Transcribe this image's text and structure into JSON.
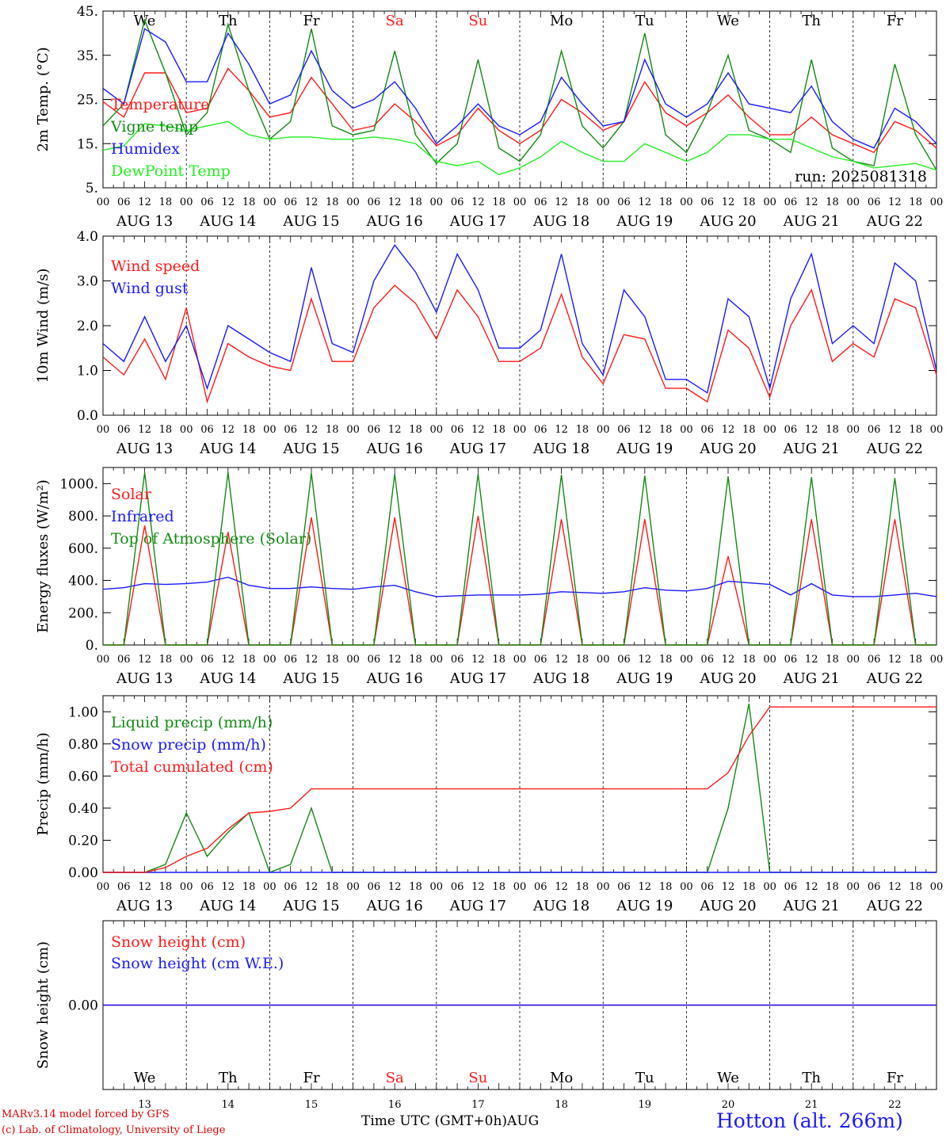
{
  "colors": {
    "red": "#ff1a1a",
    "blue": "#1a1aff",
    "green": "#138a13",
    "lime": "#22ee22",
    "weekend": "#ff1a1a",
    "axis": "#000000"
  },
  "days": [
    {
      "abbr": "We",
      "date": "AUG 13",
      "num": "13",
      "weekend": false
    },
    {
      "abbr": "Th",
      "date": "AUG 14",
      "num": "14",
      "weekend": false
    },
    {
      "abbr": "Fr",
      "date": "AUG 15",
      "num": "15",
      "weekend": false
    },
    {
      "abbr": "Sa",
      "date": "AUG 16",
      "num": "16",
      "weekend": true
    },
    {
      "abbr": "Su",
      "date": "AUG 17",
      "num": "17",
      "weekend": true
    },
    {
      "abbr": "Mo",
      "date": "AUG 18",
      "num": "18",
      "weekend": false
    },
    {
      "abbr": "Tu",
      "date": "AUG 19",
      "num": "19",
      "weekend": false
    },
    {
      "abbr": "We",
      "date": "AUG 20",
      "num": "20",
      "weekend": false
    },
    {
      "abbr": "Th",
      "date": "AUG 21",
      "num": "21",
      "weekend": false
    },
    {
      "abbr": "Fr",
      "date": "AUG 22",
      "num": "22",
      "weekend": false
    }
  ],
  "hour_ticks": [
    "00",
    "06",
    "12",
    "18"
  ],
  "hour_ticks_end": "00",
  "footer": {
    "model": "MARv3.14 model forced by GFS",
    "lab": "(c) Lab. of Climatology, University of Liege",
    "time_axis": "Time UTC (GMT+0h)AUG",
    "station": "Hotton (alt. 266m)"
  },
  "chart_data": [
    {
      "type": "line",
      "ylabel": "2m Temp. (°C)",
      "ylim": [
        5,
        45
      ],
      "yticks": [
        "45.",
        "35.",
        "25.",
        "15.",
        "5."
      ],
      "ytick_values": [
        45,
        35,
        25,
        15,
        5
      ],
      "annotation": "run: 2025081318",
      "show_days": true,
      "x": [
        0,
        6,
        12,
        18,
        24,
        30,
        36,
        42,
        48,
        54,
        60,
        66,
        72,
        78,
        84,
        90,
        96,
        102,
        108,
        114,
        120,
        126,
        132,
        138,
        144,
        150,
        156,
        162,
        168,
        174,
        180,
        186,
        192,
        198,
        204,
        210,
        216,
        222,
        228,
        234,
        240
      ],
      "series": [
        {
          "name": "Temperature",
          "color": "red",
          "values": [
            24.5,
            21,
            31,
            31,
            22,
            23,
            32,
            27,
            21,
            22,
            30,
            24,
            18,
            19,
            24,
            20,
            14.5,
            17,
            23,
            18,
            15,
            18,
            25,
            22,
            18,
            20,
            29,
            22,
            19,
            22,
            26,
            21,
            17,
            17,
            21,
            17,
            15,
            13,
            20,
            18,
            14
          ]
        },
        {
          "name": "Vigne temp",
          "color": "green",
          "values": [
            19,
            24,
            43,
            31,
            17,
            22,
            42,
            27,
            16,
            20,
            41,
            19,
            17,
            18,
            36,
            17,
            10.5,
            15,
            34,
            14,
            11,
            17,
            36,
            19,
            14,
            20,
            40,
            17,
            13,
            22,
            35,
            18,
            16,
            13,
            34,
            14,
            11,
            10,
            33,
            17,
            9
          ]
        },
        {
          "name": "Humidex",
          "color": "blue",
          "values": [
            27.5,
            24,
            41,
            38,
            29,
            29,
            40,
            33,
            24,
            26,
            36,
            27,
            23,
            25,
            29,
            23,
            15,
            19,
            24,
            19,
            17,
            20,
            30,
            24,
            19,
            20,
            34,
            24,
            21,
            24,
            31,
            24,
            23,
            22,
            28,
            20,
            16,
            14,
            23,
            20,
            15
          ]
        },
        {
          "name": "DewPoint Temp",
          "color": "lime",
          "values": [
            13.5,
            14.5,
            19.5,
            19,
            18,
            19,
            20,
            17,
            16,
            16.5,
            16.5,
            16,
            16,
            16.5,
            16,
            15,
            11,
            10,
            11,
            8,
            9.5,
            12,
            15.5,
            13,
            11,
            11,
            15,
            13,
            11,
            13,
            17,
            17,
            16,
            16,
            14,
            12,
            11,
            9.5,
            10,
            10.5,
            9
          ]
        }
      ]
    },
    {
      "type": "line",
      "ylabel": "10m Wind (m/s)",
      "ylim": [
        0,
        4
      ],
      "yticks": [
        "4.0",
        "3.0",
        "2.0",
        "1.0",
        "0.0"
      ],
      "ytick_values": [
        4,
        3,
        2,
        1,
        0
      ],
      "show_days": false,
      "x": [
        0,
        6,
        12,
        18,
        24,
        30,
        36,
        42,
        48,
        54,
        60,
        66,
        72,
        78,
        84,
        90,
        96,
        102,
        108,
        114,
        120,
        126,
        132,
        138,
        144,
        150,
        156,
        162,
        168,
        174,
        180,
        186,
        192,
        198,
        204,
        210,
        216,
        222,
        228,
        234,
        240
      ],
      "series": [
        {
          "name": "Wind speed",
          "color": "red",
          "values": [
            1.3,
            0.9,
            1.7,
            0.8,
            2.4,
            0.3,
            1.6,
            1.3,
            1.1,
            1.0,
            2.6,
            1.2,
            1.2,
            2.4,
            2.9,
            2.5,
            1.7,
            2.8,
            2.2,
            1.2,
            1.2,
            1.5,
            2.7,
            1.3,
            0.7,
            1.8,
            1.7,
            0.6,
            0.6,
            0.3,
            1.9,
            1.5,
            0.4,
            2.0,
            2.8,
            1.2,
            1.6,
            1.3,
            2.6,
            2.4,
            0.9
          ]
        },
        {
          "name": "Wind gust",
          "color": "blue",
          "values": [
            1.6,
            1.2,
            2.2,
            1.2,
            2.0,
            0.6,
            2.0,
            1.7,
            1.4,
            1.2,
            3.3,
            1.6,
            1.4,
            3.0,
            3.8,
            3.2,
            2.3,
            3.6,
            2.8,
            1.5,
            1.5,
            1.9,
            3.6,
            1.6,
            0.9,
            2.8,
            2.2,
            0.8,
            0.8,
            0.5,
            2.6,
            2.2,
            0.6,
            2.6,
            3.6,
            1.6,
            2.0,
            1.6,
            3.4,
            3.0,
            1.0
          ]
        }
      ]
    },
    {
      "type": "line",
      "ylabel": "Energy fluxes (W/m²)",
      "ylim": [
        0,
        1100
      ],
      "yticks": [
        "1000.",
        "800.",
        "600.",
        "400.",
        "200.",
        "0."
      ],
      "ytick_values": [
        1000,
        800,
        600,
        400,
        200,
        0
      ],
      "show_days": false,
      "x": [
        0,
        6,
        12,
        18,
        24,
        30,
        36,
        42,
        48,
        54,
        60,
        66,
        72,
        78,
        84,
        90,
        96,
        102,
        108,
        114,
        120,
        126,
        132,
        138,
        144,
        150,
        156,
        162,
        168,
        174,
        180,
        186,
        192,
        198,
        204,
        210,
        216,
        222,
        228,
        234,
        240
      ],
      "series": [
        {
          "name": "Solar",
          "color": "red",
          "values": [
            0,
            0,
            740,
            0,
            0,
            0,
            700,
            0,
            0,
            0,
            790,
            0,
            0,
            0,
            790,
            0,
            0,
            0,
            800,
            0,
            0,
            0,
            780,
            0,
            0,
            0,
            780,
            0,
            0,
            0,
            550,
            0,
            0,
            0,
            780,
            0,
            0,
            0,
            780,
            0,
            0
          ]
        },
        {
          "name": "Infrared",
          "color": "blue",
          "values": [
            345,
            355,
            380,
            375,
            380,
            390,
            420,
            370,
            350,
            350,
            360,
            350,
            345,
            360,
            370,
            330,
            300,
            305,
            310,
            310,
            310,
            315,
            330,
            325,
            320,
            330,
            355,
            340,
            335,
            350,
            395,
            385,
            375,
            310,
            380,
            310,
            300,
            300,
            310,
            320,
            300
          ]
        },
        {
          "name": "Top of Atmosphere (Solar)",
          "color": "green",
          "values": [
            0,
            0,
            1070,
            0,
            0,
            0,
            1070,
            0,
            0,
            0,
            1065,
            0,
            0,
            0,
            1060,
            0,
            0,
            0,
            1060,
            0,
            0,
            0,
            1055,
            0,
            0,
            0,
            1050,
            0,
            0,
            0,
            1045,
            0,
            0,
            0,
            1040,
            0,
            0,
            0,
            1035,
            0,
            0
          ]
        }
      ]
    },
    {
      "type": "line",
      "ylabel": "Precip (mm/h)",
      "ylim": [
        0,
        1.1
      ],
      "yticks": [
        "1.00",
        "0.80",
        "0.60",
        "0.40",
        "0.20",
        "0.00"
      ],
      "ytick_values": [
        1,
        0.8,
        0.6,
        0.4,
        0.2,
        0
      ],
      "show_days": false,
      "x": [
        0,
        6,
        12,
        18,
        24,
        30,
        36,
        42,
        48,
        54,
        60,
        66,
        72,
        78,
        84,
        90,
        96,
        102,
        108,
        114,
        120,
        126,
        132,
        138,
        144,
        150,
        156,
        162,
        168,
        174,
        180,
        186,
        192,
        198,
        204,
        210,
        216,
        222,
        228,
        234,
        240
      ],
      "series": [
        {
          "name": "Liquid precip (mm/h)",
          "color": "green",
          "values": [
            0,
            0,
            0,
            0.05,
            0.37,
            0.1,
            0.25,
            0.37,
            0,
            0.05,
            0.4,
            0,
            0,
            0,
            0,
            0,
            0,
            0,
            0,
            0,
            0,
            0,
            0,
            0,
            0,
            0,
            0,
            0,
            0,
            0,
            0.4,
            1.05,
            0,
            0,
            0,
            0,
            0,
            0,
            0,
            0,
            0
          ]
        },
        {
          "name": "Snow precip (mm/h)",
          "color": "blue",
          "values": [
            0,
            0,
            0,
            0,
            0,
            0,
            0,
            0,
            0,
            0,
            0,
            0,
            0,
            0,
            0,
            0,
            0,
            0,
            0,
            0,
            0,
            0,
            0,
            0,
            0,
            0,
            0,
            0,
            0,
            0,
            0,
            0,
            0,
            0,
            0,
            0,
            0,
            0,
            0,
            0,
            0
          ]
        },
        {
          "name": "Total cumulated (cm)",
          "color": "red",
          "values": [
            0,
            0,
            0,
            0.03,
            0.1,
            0.15,
            0.27,
            0.37,
            0.38,
            0.4,
            0.52,
            0.52,
            0.52,
            0.52,
            0.52,
            0.52,
            0.52,
            0.52,
            0.52,
            0.52,
            0.52,
            0.52,
            0.52,
            0.52,
            0.52,
            0.52,
            0.52,
            0.52,
            0.52,
            0.52,
            0.62,
            0.85,
            1.03,
            1.03,
            1.03,
            1.03,
            1.03,
            1.03,
            1.03,
            1.03,
            1.03
          ]
        }
      ]
    },
    {
      "type": "line",
      "ylabel": "Snow height (cm)",
      "ylim": [
        -1,
        1
      ],
      "yticks": [
        "0.00"
      ],
      "ytick_values": [
        0
      ],
      "show_days": true,
      "show_hours": false,
      "x": [
        0,
        240
      ],
      "series": [
        {
          "name": "Snow height (cm)",
          "color": "red",
          "values": [
            0,
            0
          ]
        },
        {
          "name": "Snow height (cm W.E.)",
          "color": "blue",
          "values": [
            0,
            0
          ]
        }
      ]
    }
  ]
}
